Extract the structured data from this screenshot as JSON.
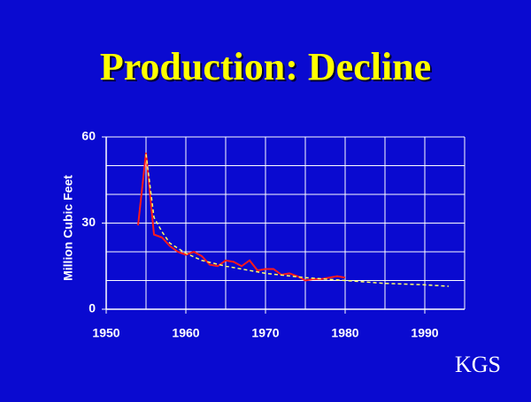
{
  "logo": "KGS",
  "chart_data": {
    "type": "line",
    "title": "Production: Decline",
    "y_label": "Million Cubic Feet",
    "xlim": [
      1950,
      1995
    ],
    "ylim": [
      0,
      60
    ],
    "xticks": [
      1950,
      1960,
      1970,
      1980,
      1990
    ],
    "yticks": [
      0,
      30,
      60
    ],
    "x_gridlines": [
      1955,
      1960,
      1965,
      1970,
      1975,
      1980,
      1985,
      1990,
      1995
    ],
    "y_gridlines": [
      10,
      20,
      30,
      40,
      50,
      60
    ],
    "grid_color": "#ffffff",
    "series": [
      {
        "color": "#ff1a1a",
        "dashed": false,
        "x": [
          1954,
          1955,
          1956,
          1957,
          1958,
          1959,
          1960,
          1961,
          1962,
          1963,
          1964,
          1965,
          1966,
          1967,
          1968,
          1969,
          1970,
          1971,
          1972,
          1973,
          1974,
          1975,
          1976,
          1977,
          1978,
          1979,
          1980
        ],
        "values": [
          29.2,
          54.5,
          26,
          25,
          22,
          20,
          19,
          20,
          18.5,
          15.5,
          15,
          17,
          16.5,
          15,
          17,
          13.5,
          14,
          14,
          12,
          12.5,
          11.5,
          10,
          10.5,
          10.5,
          11,
          11.5,
          11
        ]
      },
      {
        "color": "#ffff66",
        "dashed": true,
        "x": [
          1955,
          1956,
          1957,
          1958,
          1960,
          1962,
          1965,
          1970,
          1975,
          1980,
          1985,
          1990,
          1993
        ],
        "values": [
          54,
          32,
          27,
          23,
          19.5,
          17,
          15,
          12.5,
          11,
          10,
          9,
          8.5,
          8
        ]
      }
    ]
  }
}
